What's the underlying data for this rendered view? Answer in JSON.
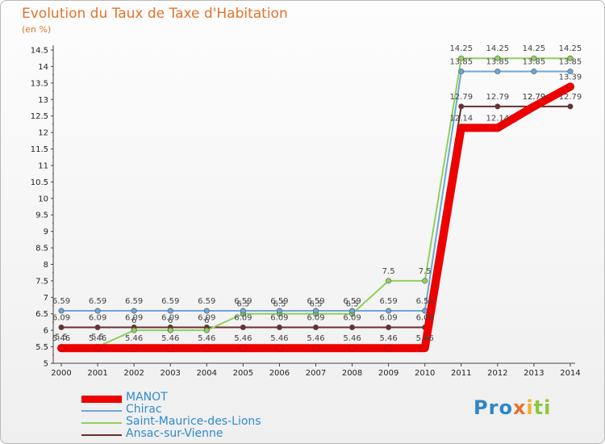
{
  "title": "Evolution du Taux de Taxe d'Habitation",
  "subtitle": "(en %)",
  "logo": [
    "P",
    "r",
    "o",
    "x",
    "i",
    "t",
    "i"
  ],
  "colors": {
    "logo": [
      "#2f87c6",
      "#2f87c6",
      "#2f87c6",
      "#e2732d",
      "#f0b22b",
      "#8cc63e",
      "#8cc63e"
    ],
    "title": "#e2732d",
    "legend_text": "#2e8bd0"
  },
  "chart_data": {
    "type": "line",
    "x": [
      "2000",
      "2001",
      "2002",
      "2003",
      "2004",
      "2005",
      "2006",
      "2007",
      "2008",
      "2009",
      "2010",
      "2011",
      "2012",
      "2013",
      "2014"
    ],
    "ylim": [
      5,
      14.5
    ],
    "yticks": [
      "5",
      "5.5",
      "6",
      "6.5",
      "7",
      "7.5",
      "8",
      "8.5",
      "9",
      "9.5",
      "10",
      "10.5",
      "11",
      "11.5",
      "12",
      "12.5",
      "13",
      "13.5",
      "14",
      "14.5"
    ],
    "grid": false,
    "legend_position": "bottom-left",
    "series": [
      {
        "name": "Ansac-sur-Vienne",
        "color": "#6b2e2e",
        "values": [
          6.09,
          6.09,
          6.09,
          6.09,
          6.09,
          6.09,
          6.09,
          6.09,
          6.09,
          6.09,
          6.09,
          12.79,
          12.79,
          12.79,
          12.79
        ],
        "labels": [
          "6.09",
          "6.09",
          "6.09",
          "6.09",
          "6.09",
          "6.09",
          "6.09",
          "6.09",
          "6.09",
          "6.09",
          "6.09",
          "12.79",
          "12.79",
          "12.79",
          "12.79"
        ]
      },
      {
        "name": "Saint-Maurice-des-Lions",
        "color": "#8fd15c",
        "values": [
          5.5,
          5.5,
          6,
          6,
          6,
          6.5,
          6.5,
          6.5,
          6.5,
          7.5,
          7.5,
          14.25,
          14.25,
          14.25,
          14.25
        ],
        "labels": [
          "5.5",
          "5.5",
          "6",
          "6",
          "6",
          "6.5",
          "6.5",
          "6.5",
          "6.5",
          "7.5",
          "7.5",
          "14.25",
          "14.25",
          "14.25",
          "14.25"
        ]
      },
      {
        "name": "Chirac",
        "color": "#6fa6d6",
        "values": [
          6.59,
          6.59,
          6.59,
          6.59,
          6.59,
          6.59,
          6.59,
          6.59,
          6.59,
          6.59,
          6.59,
          13.85,
          13.85,
          13.85,
          13.85
        ],
        "labels": [
          "6.59",
          "6.59",
          "6.59",
          "6.59",
          "6.59",
          "6.59",
          "6.59",
          "6.59",
          "6.59",
          "6.59",
          "6.59",
          "13.85",
          "13.85",
          "13.85",
          "13.85"
        ]
      },
      {
        "name": "MANOT",
        "color": "#ee0000",
        "values": [
          5.46,
          5.46,
          5.46,
          5.46,
          5.46,
          5.46,
          5.46,
          5.46,
          5.46,
          5.46,
          5.46,
          12.14,
          12.14,
          12.79,
          13.39
        ],
        "labels": [
          "5.46",
          "5.46",
          "5.46",
          "5.46",
          "5.46",
          "5.46",
          "5.46",
          "5.46",
          "5.46",
          "5.46",
          "5.46",
          "12.14",
          "12.14",
          "12.79",
          "13.39"
        ]
      }
    ],
    "legend": [
      {
        "name": "MANOT",
        "color": "#ee0000"
      },
      {
        "name": "Chirac",
        "color": "#6fa6d6"
      },
      {
        "name": "Saint-Maurice-des-Lions",
        "color": "#8fd15c"
      },
      {
        "name": "Ansac-sur-Vienne",
        "color": "#6b2e2e"
      }
    ]
  }
}
